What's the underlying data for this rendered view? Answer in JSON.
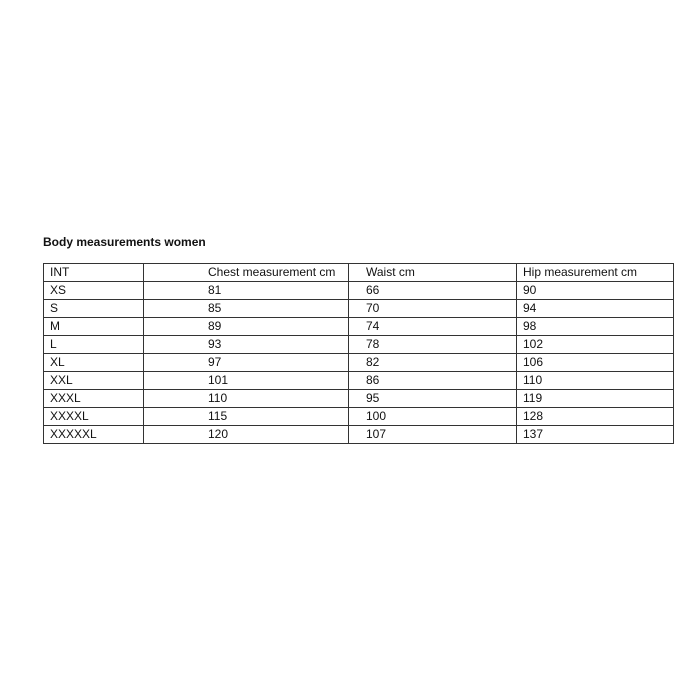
{
  "title": "Body measurements women",
  "table": {
    "headers": [
      "INT",
      "Chest measurement cm",
      "Waist cm",
      "Hip measurement cm"
    ],
    "rows": [
      [
        "XS",
        "81",
        "66",
        "90"
      ],
      [
        "S",
        "85",
        "70",
        "94"
      ],
      [
        "M",
        "89",
        "74",
        "98"
      ],
      [
        "L",
        "93",
        "78",
        "102"
      ],
      [
        "XL",
        "97",
        "82",
        "106"
      ],
      [
        "XXL",
        "101",
        "86",
        "110"
      ],
      [
        "XXXL",
        "110",
        "95",
        "119"
      ],
      [
        "XXXXL",
        "115",
        "100",
        "128"
      ],
      [
        "XXXXXL",
        "120",
        "107",
        "137"
      ]
    ]
  }
}
